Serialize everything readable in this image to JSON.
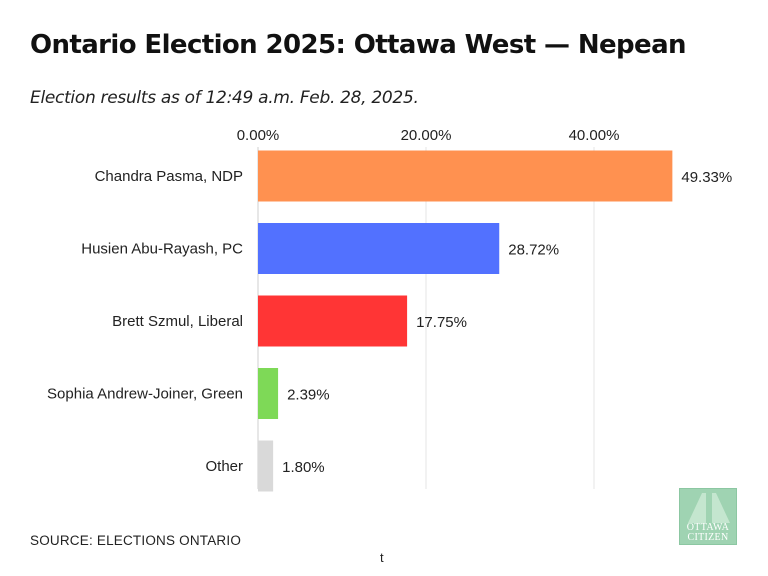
{
  "header": {
    "title": "Ontario Election 2025: Ottawa West — Nepean",
    "subtitle": "Election results as of 12:49 a.m. Feb. 28, 2025."
  },
  "chart_data": {
    "type": "bar",
    "orientation": "horizontal",
    "categories": [
      "Chandra Pasma, NDP",
      "Husien Abu-Rayash, PC",
      "Brett Szmul, Liberal",
      "Sophia Andrew-Joiner, Green",
      "Other"
    ],
    "values": [
      49.33,
      28.72,
      17.75,
      2.39,
      1.8
    ],
    "value_labels": [
      "49.33%",
      "28.72%",
      "17.75%",
      "2.39%",
      "1.80%"
    ],
    "colors": [
      "#ff9150",
      "#5271ff",
      "#ff3535",
      "#7ed957",
      "#d9d9d9"
    ],
    "x_ticks": [
      0,
      20,
      40
    ],
    "x_tick_labels": [
      "0.00%",
      "20.00%",
      "40.00%"
    ],
    "xlim": [
      0,
      50
    ],
    "grid": true,
    "x_axis_position": "top"
  },
  "footer": {
    "source": "SOURCE: ELECTIONS ONTARIO",
    "footnote": "t",
    "logo_line1": "OTTAWA",
    "logo_line2": "CITIZEN"
  }
}
